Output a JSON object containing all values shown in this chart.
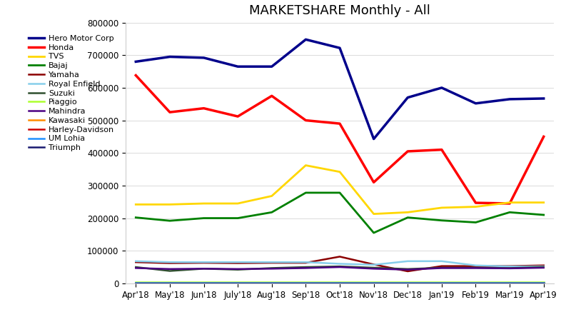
{
  "title": "MARKETSHARE Monthly - All",
  "x_labels": [
    "Apr'18",
    "May'18",
    "Jun'18",
    "July'18",
    "Aug'18",
    "Sep'18",
    "Oct'18",
    "Nov'18",
    "Dec'18",
    "Jan'19",
    "Feb'19",
    "Mar'19",
    "Apr'19"
  ],
  "series": [
    {
      "name": "Hero Motor Corp",
      "color": "#00008B",
      "linewidth": 2.5,
      "values": [
        680000,
        695000,
        692000,
        665000,
        665000,
        748000,
        722000,
        443000,
        570000,
        600000,
        552000,
        565000,
        567000
      ]
    },
    {
      "name": "Honda",
      "color": "#FF0000",
      "linewidth": 2.5,
      "values": [
        638000,
        525000,
        537000,
        512000,
        575000,
        500000,
        490000,
        310000,
        405000,
        410000,
        247000,
        245000,
        450000
      ]
    },
    {
      "name": "TVS",
      "color": "#FFD700",
      "linewidth": 2.0,
      "values": [
        242000,
        242000,
        245000,
        245000,
        268000,
        362000,
        342000,
        213000,
        218000,
        232000,
        235000,
        248000,
        248000
      ]
    },
    {
      "name": "Bajaj",
      "color": "#008000",
      "linewidth": 2.0,
      "values": [
        202000,
        192000,
        200000,
        200000,
        218000,
        278000,
        278000,
        155000,
        202000,
        193000,
        187000,
        218000,
        210000
      ]
    },
    {
      "name": "Yamaha",
      "color": "#8B0000",
      "linewidth": 1.8,
      "values": [
        65000,
        62000,
        63000,
        62000,
        63000,
        63000,
        82000,
        58000,
        37000,
        53000,
        53000,
        53000,
        55000
      ]
    },
    {
      "name": "Royal Enfield",
      "color": "#87CEEB",
      "linewidth": 1.8,
      "values": [
        68000,
        65000,
        65000,
        65000,
        65000,
        65000,
        60000,
        57000,
        68000,
        68000,
        55000,
        52000,
        52000
      ]
    },
    {
      "name": "Suzuki",
      "color": "#2F4F2F",
      "linewidth": 1.8,
      "values": [
        50000,
        38000,
        45000,
        42000,
        47000,
        50000,
        52000,
        48000,
        44000,
        48000,
        48000,
        47000,
        50000
      ]
    },
    {
      "name": "Piaggio",
      "color": "#ADFF2F",
      "linewidth": 1.8,
      "values": [
        4000,
        4000,
        4000,
        4000,
        4000,
        4000,
        4000,
        4000,
        4000,
        4000,
        4000,
        4000,
        4000
      ]
    },
    {
      "name": "Mahindra",
      "color": "#4B0082",
      "linewidth": 1.8,
      "values": [
        47000,
        44000,
        45000,
        44000,
        45000,
        47000,
        50000,
        45000,
        42000,
        47000,
        47000,
        46000,
        48000
      ]
    },
    {
      "name": "Kawasaki",
      "color": "#FF8C00",
      "linewidth": 1.8,
      "values": [
        2000,
        2000,
        2000,
        2000,
        2000,
        2000,
        2000,
        2000,
        2000,
        2000,
        2000,
        2000,
        2000
      ]
    },
    {
      "name": "Harley-Davidson",
      "color": "#CC0000",
      "linewidth": 1.8,
      "values": [
        500,
        500,
        500,
        500,
        500,
        500,
        500,
        500,
        500,
        500,
        500,
        500,
        500
      ]
    },
    {
      "name": "UM Lohia",
      "color": "#1E90FF",
      "linewidth": 1.8,
      "values": [
        1000,
        1000,
        1000,
        1000,
        1000,
        1000,
        1000,
        1000,
        1000,
        1000,
        1000,
        1000,
        1000
      ]
    },
    {
      "name": "Triumph",
      "color": "#191970",
      "linewidth": 1.8,
      "values": [
        300,
        300,
        300,
        300,
        300,
        300,
        300,
        300,
        300,
        300,
        300,
        300,
        300
      ]
    }
  ],
  "ylim": [
    0,
    800000
  ],
  "yticks": [
    0,
    100000,
    200000,
    300000,
    400000,
    500000,
    600000,
    700000,
    800000
  ],
  "background_color": "#FFFFFF",
  "title_fontsize": 13,
  "legend_fontsize": 8,
  "tick_fontsize": 8.5
}
